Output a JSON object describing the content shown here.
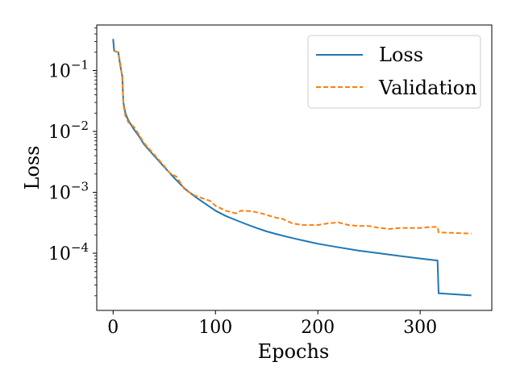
{
  "chart_data": {
    "type": "line",
    "title": "",
    "xlabel": "Epochs",
    "ylabel": "Loss",
    "xlim": [
      -16,
      370
    ],
    "ylim": [
      1.15e-05,
      0.56
    ],
    "yscale": "log",
    "grid": false,
    "x_ticks": [
      {
        "value": 0,
        "label": "0"
      },
      {
        "value": 100,
        "label": "100"
      },
      {
        "value": 200,
        "label": "200"
      },
      {
        "value": 300,
        "label": "300"
      }
    ],
    "y_ticks": [
      {
        "value": 0.1,
        "base": "10",
        "exp": "−1"
      },
      {
        "value": 0.01,
        "base": "10",
        "exp": "−2"
      },
      {
        "value": 0.001,
        "base": "10",
        "exp": "−3"
      },
      {
        "value": 0.0001,
        "base": "10",
        "exp": "−4"
      }
    ],
    "legend": {
      "position": "top-right"
    },
    "series": [
      {
        "name": "Loss",
        "color": "#1f77b4",
        "style": "solid",
        "points": [
          [
            0,
            0.33
          ],
          [
            1,
            0.21
          ],
          [
            5,
            0.2
          ],
          [
            7,
            0.12
          ],
          [
            9,
            0.08
          ],
          [
            10,
            0.03
          ],
          [
            12,
            0.02
          ],
          [
            15,
            0.015
          ],
          [
            20,
            0.011
          ],
          [
            25,
            0.0085
          ],
          [
            30,
            0.0062
          ],
          [
            40,
            0.004
          ],
          [
            50,
            0.0026
          ],
          [
            60,
            0.0017
          ],
          [
            70,
            0.00115
          ],
          [
            80,
            0.00085
          ],
          [
            90,
            0.00065
          ],
          [
            100,
            0.0005
          ],
          [
            110,
            0.00041
          ],
          [
            120,
            0.00035
          ],
          [
            130,
            0.0003
          ],
          [
            140,
            0.00026
          ],
          [
            150,
            0.000228
          ],
          [
            160,
            0.000205
          ],
          [
            170,
            0.000186
          ],
          [
            180,
            0.00017
          ],
          [
            190,
            0.000156
          ],
          [
            200,
            0.000143
          ],
          [
            220,
            0.000125
          ],
          [
            240,
            0.00011
          ],
          [
            260,
            0.0001
          ],
          [
            280,
            9e-05
          ],
          [
            300,
            8.2e-05
          ],
          [
            317,
            7.6e-05
          ],
          [
            318,
            2.2e-05
          ],
          [
            350,
            2.03e-05
          ]
        ]
      },
      {
        "name": "Validation",
        "color": "#ff7f0e",
        "style": "dashed",
        "points": [
          [
            1,
            0.21
          ],
          [
            5,
            0.2
          ],
          [
            7,
            0.13
          ],
          [
            9,
            0.075
          ],
          [
            10,
            0.028
          ],
          [
            12,
            0.018
          ],
          [
            15,
            0.014
          ],
          [
            20,
            0.012
          ],
          [
            25,
            0.009
          ],
          [
            30,
            0.0065
          ],
          [
            40,
            0.0042
          ],
          [
            50,
            0.0027
          ],
          [
            55,
            0.0021
          ],
          [
            62,
            0.0018
          ],
          [
            70,
            0.0011
          ],
          [
            80,
            0.00088
          ],
          [
            95,
            0.00072
          ],
          [
            100,
            0.0006
          ],
          [
            110,
            0.0005
          ],
          [
            120,
            0.00045
          ],
          [
            125,
            0.0005
          ],
          [
            135,
            0.00049
          ],
          [
            145,
            0.00045
          ],
          [
            160,
            0.00038
          ],
          [
            165,
            0.00037
          ],
          [
            175,
            0.00031
          ],
          [
            185,
            0.00029
          ],
          [
            200,
            0.00029
          ],
          [
            210,
            0.00031
          ],
          [
            220,
            0.00032
          ],
          [
            230,
            0.00029
          ],
          [
            240,
            0.00028
          ],
          [
            250,
            0.00028
          ],
          [
            260,
            0.00026
          ],
          [
            270,
            0.00025
          ],
          [
            280,
            0.00026
          ],
          [
            290,
            0.00026
          ],
          [
            300,
            0.00026
          ],
          [
            310,
            0.00027
          ],
          [
            317,
            0.00027
          ],
          [
            318,
            0.00022
          ],
          [
            350,
            0.00021
          ]
        ]
      }
    ]
  }
}
